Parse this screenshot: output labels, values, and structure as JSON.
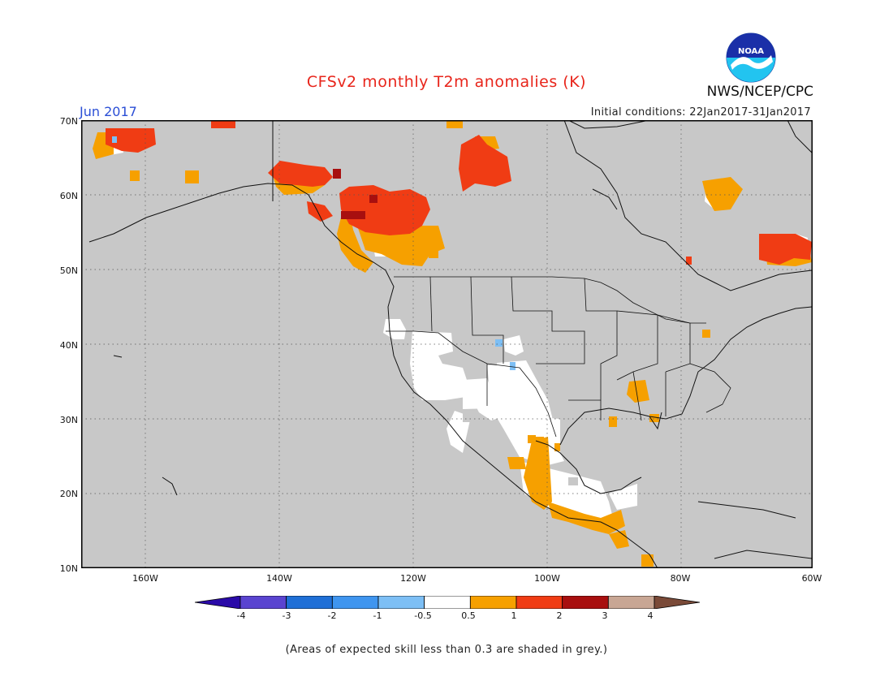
{
  "title": "CFSv2 monthly T2m anomalies (K)",
  "month_label": "Jun 2017",
  "initial_conditions": "Initial conditions: 22Jan2017-31Jan2017",
  "org_label": "NWS/NCEP/CPC",
  "logo_text": "NOAA",
  "footnote": "(Areas of expected skill less than 0.3 are shaded in grey.)",
  "y_ticks": [
    "70N",
    "60N",
    "50N",
    "40N",
    "30N",
    "20N",
    "10N"
  ],
  "x_ticks": [
    "160W",
    "140W",
    "120W",
    "100W",
    "80W",
    "60W"
  ],
  "colorbar": {
    "labels": [
      "-4",
      "-3",
      "-2",
      "-1",
      "-0.5",
      "0.5",
      "1",
      "2",
      "3",
      "4"
    ],
    "colors": [
      "#2a0aa8",
      "#5a44d0",
      "#1f6fd6",
      "#3f95ef",
      "#7dbff5",
      "#ffffff",
      "#f6a000",
      "#f03c14",
      "#a80f0f",
      "#c8a694",
      "#7a4a38"
    ]
  },
  "colors": {
    "skill_grey": "#c8c8c8",
    "anom_05_1": "#f6a000",
    "anom_1_2": "#f03c14",
    "anom_2_3": "#a80f0f",
    "anom_neutral": "#ffffff",
    "anom_neg": "#7dbff5"
  }
}
